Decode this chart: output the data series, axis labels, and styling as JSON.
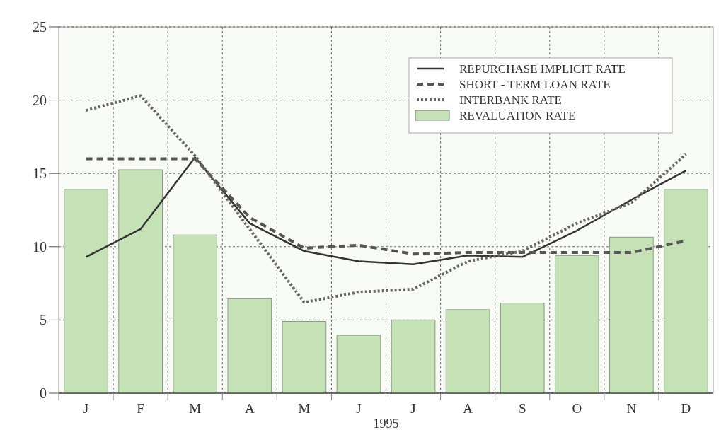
{
  "chart_data": {
    "type": "bar",
    "categories": [
      "J",
      "F",
      "M",
      "A",
      "M",
      "J",
      "J",
      "A",
      "S",
      "O",
      "N",
      "D"
    ],
    "xlabel": "1995",
    "series": [
      {
        "name": "REPURCHASE IMPLICIT RATE",
        "type": "line",
        "line_style": "solid",
        "color": "#333333",
        "values": [
          9.3,
          11.2,
          16.1,
          11.6,
          9.7,
          9.0,
          8.8,
          9.4,
          9.3,
          11.1,
          13.2,
          15.2
        ]
      },
      {
        "name": "SHORT - TERM LOAN RATE",
        "type": "line",
        "line_style": "dashed",
        "color": "#555555",
        "values": [
          16.0,
          16.0,
          16.0,
          12.0,
          9.9,
          10.1,
          9.5,
          9.6,
          9.6,
          9.6,
          9.6,
          10.4
        ]
      },
      {
        "name": "INTERBANK RATE",
        "type": "line",
        "line_style": "dotted",
        "color": "#666666",
        "values": [
          19.3,
          20.3,
          16.2,
          11.2,
          6.2,
          6.9,
          7.1,
          9.0,
          9.7,
          11.6,
          13.0,
          16.3
        ]
      },
      {
        "name": "REVALUATION RATE",
        "color": "#c4e2b6",
        "values": [
          13.9,
          15.25,
          10.8,
          6.45,
          4.9,
          3.95,
          5.0,
          5.7,
          6.15,
          9.4,
          10.65,
          13.9
        ]
      }
    ],
    "ylim": [
      0,
      25
    ],
    "yticks": [
      0,
      5,
      10,
      15,
      20,
      25
    ],
    "grid": true,
    "legend": "top right"
  }
}
